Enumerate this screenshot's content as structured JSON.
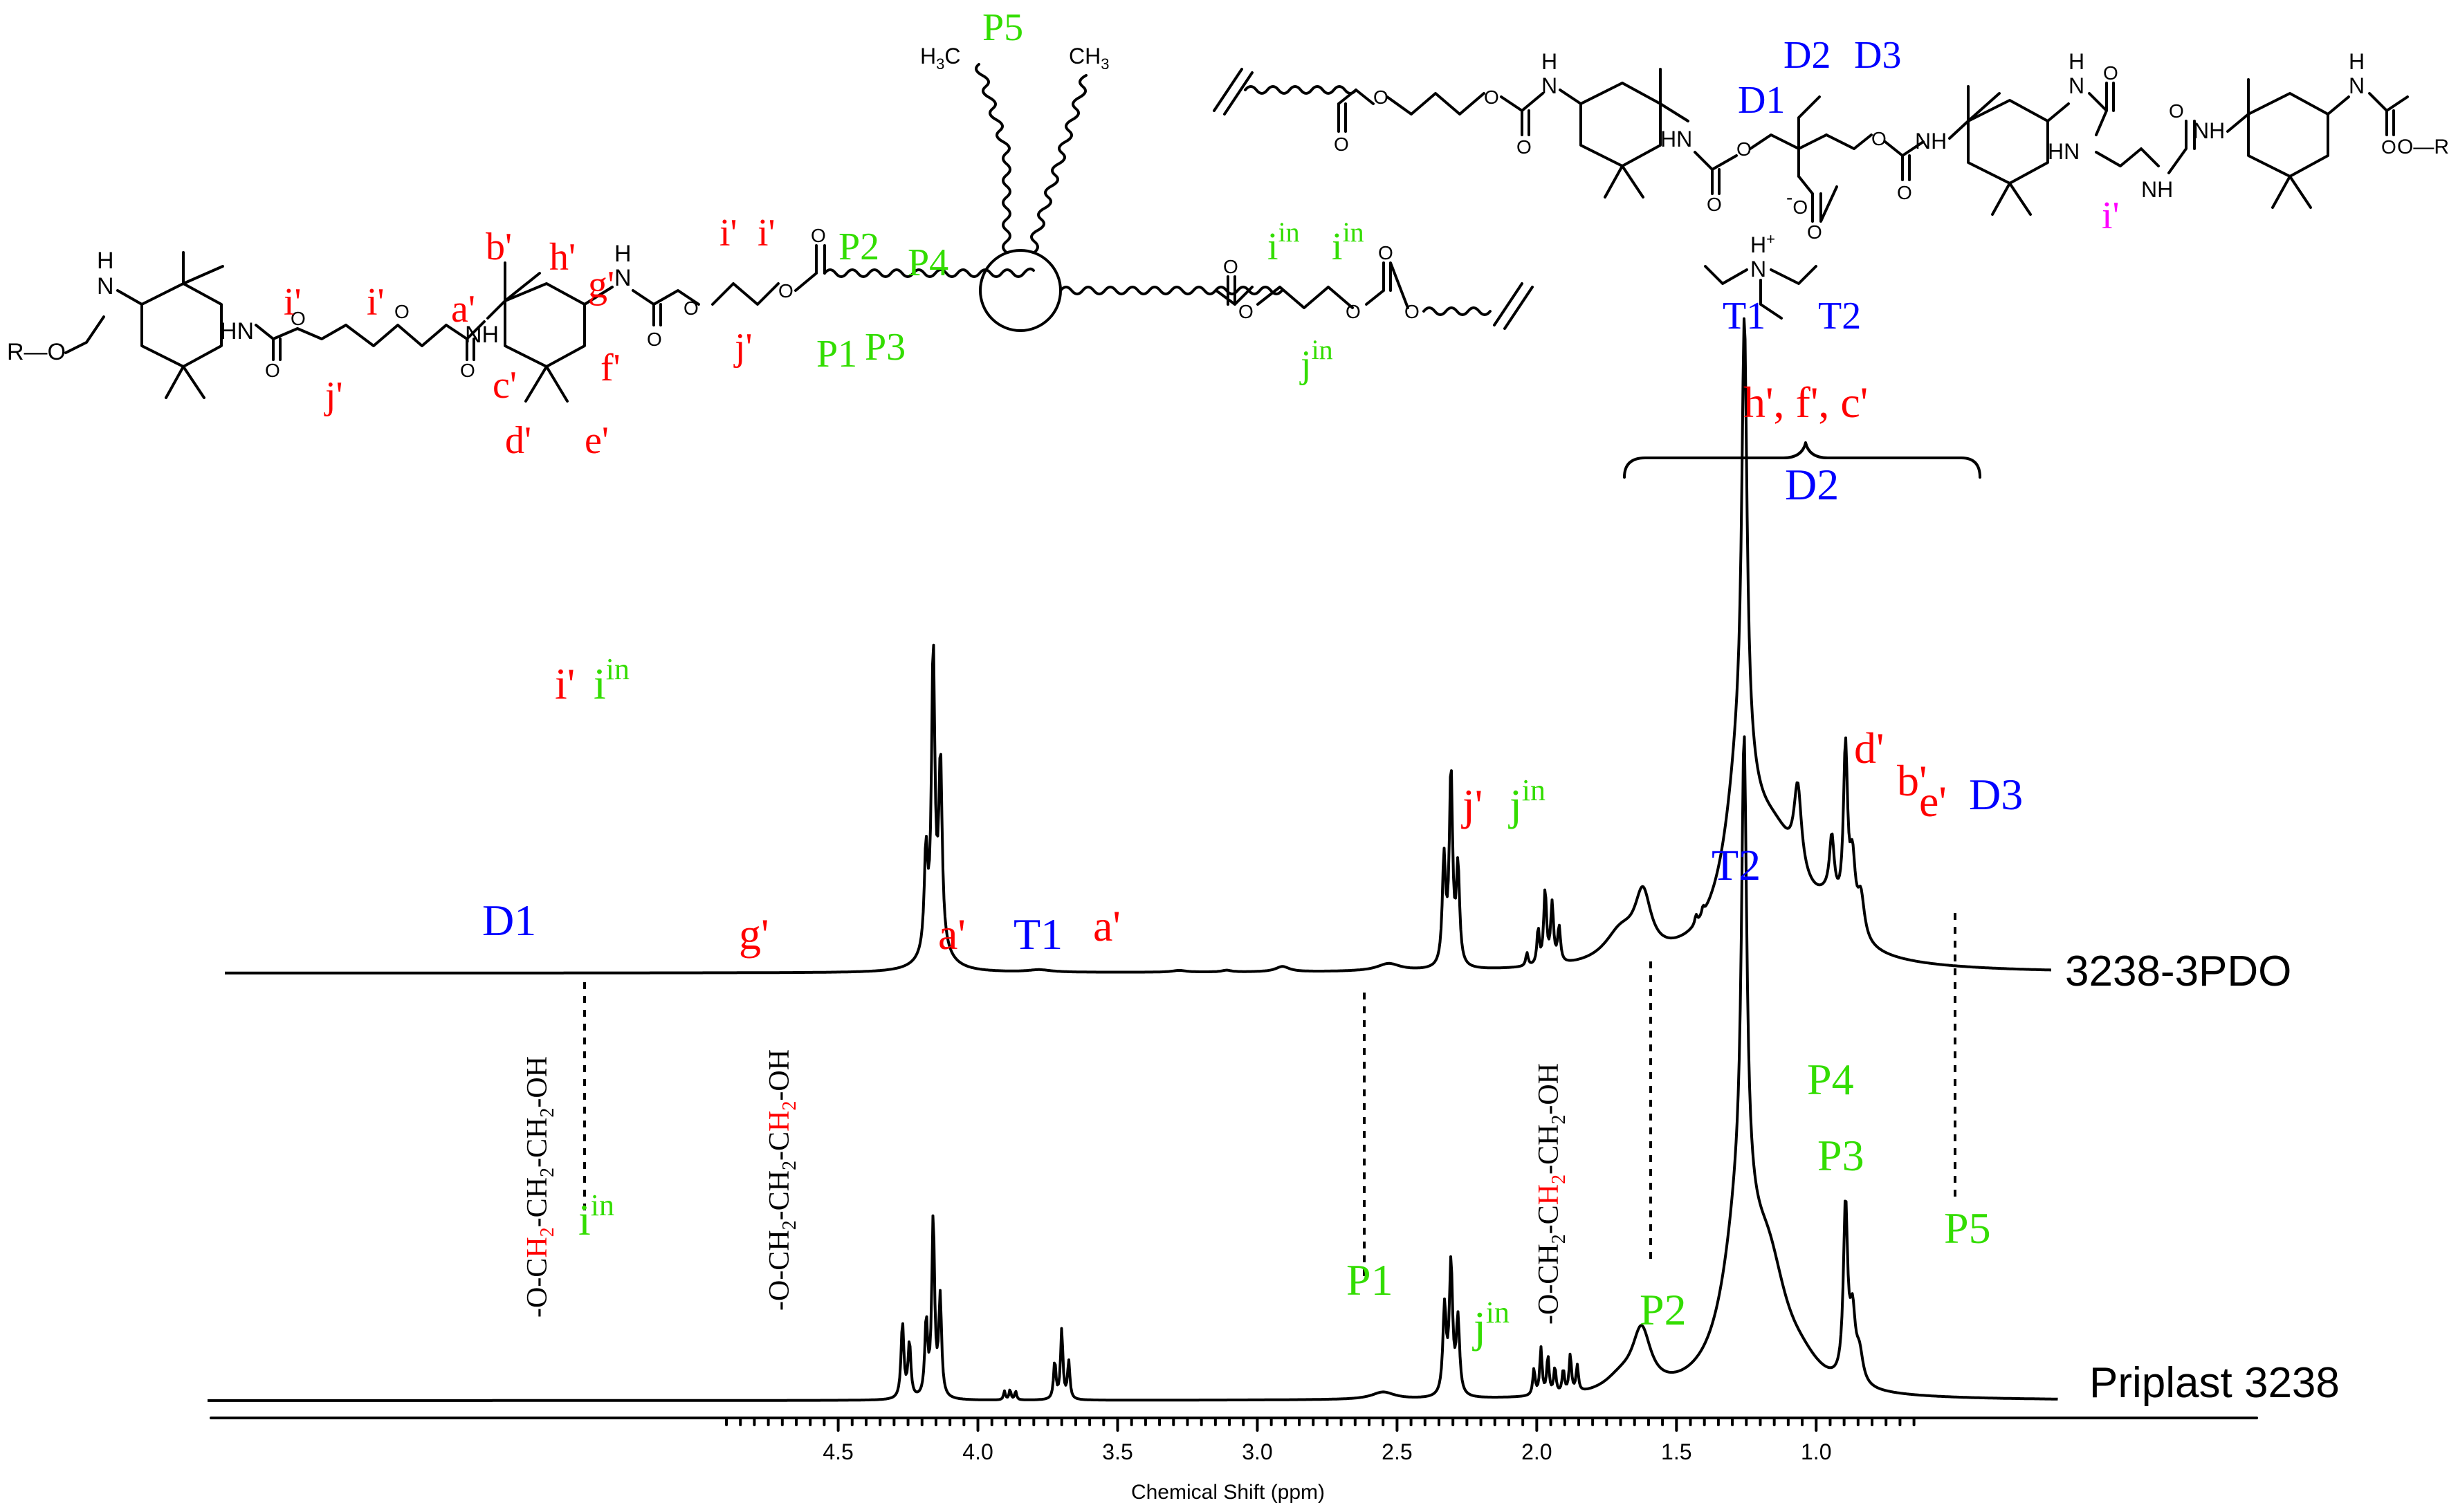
{
  "colors": {
    "red": "#ff0000",
    "green": "#33dd00",
    "blue": "#0000ff",
    "magenta": "#ff00ff",
    "black": "#000000"
  },
  "chart_data": {
    "type": "line",
    "xlabel": "Chemical Shift (ppm)",
    "xlim": [
      4.9,
      0.65
    ],
    "x_reversed": true,
    "x_ticks": [
      4.5,
      4.0,
      3.5,
      3.0,
      2.5,
      2.0,
      1.5,
      1.0
    ],
    "x_tick_labels": [
      "4.5",
      "4.0",
      "3.5",
      "3.0",
      "2.5",
      "2.0",
      "1.5",
      "1.0"
    ],
    "series": [
      {
        "name": "3238-3PDO",
        "x_start": 4.9,
        "x_end": 0.65,
        "peaks": [
          {
            "x": 4.186,
            "h": 0.33,
            "w": 0.007
          },
          {
            "x": 4.16,
            "h": 1.0,
            "w": 0.007
          },
          {
            "x": 4.134,
            "h": 0.62,
            "w": 0.007
          },
          {
            "x": 4.15,
            "h": 0.09,
            "w": 0.05
          },
          {
            "x": 3.78,
            "h": 0.008,
            "w": 0.05
          },
          {
            "x": 3.28,
            "h": 0.006,
            "w": 0.03
          },
          {
            "x": 3.11,
            "h": 0.006,
            "w": 0.02
          },
          {
            "x": 2.91,
            "h": 0.018,
            "w": 0.03
          },
          {
            "x": 2.53,
            "h": 0.025,
            "w": 0.05
          },
          {
            "x": 2.332,
            "h": 0.36,
            "w": 0.007
          },
          {
            "x": 2.307,
            "h": 0.66,
            "w": 0.007
          },
          {
            "x": 2.282,
            "h": 0.33,
            "w": 0.007
          },
          {
            "x": 2.035,
            "h": 0.045,
            "w": 0.005
          },
          {
            "x": 1.995,
            "h": 0.12,
            "w": 0.005
          },
          {
            "x": 1.97,
            "h": 0.25,
            "w": 0.006
          },
          {
            "x": 1.945,
            "h": 0.2,
            "w": 0.006
          },
          {
            "x": 1.92,
            "h": 0.12,
            "w": 0.006
          },
          {
            "x": 1.62,
            "h": 0.2,
            "w": 0.035
          },
          {
            "x": 1.7,
            "h": 0.1,
            "w": 0.07
          },
          {
            "x": 1.43,
            "h": 0.03,
            "w": 0.005
          },
          {
            "x": 1.405,
            "h": 0.025,
            "w": 0.005
          },
          {
            "x": 1.257,
            "h": 1.45,
            "w": 0.011
          },
          {
            "x": 1.27,
            "h": 0.55,
            "w": 0.06
          },
          {
            "x": 1.15,
            "h": 0.4,
            "w": 0.14
          },
          {
            "x": 1.066,
            "h": 0.28,
            "w": 0.016
          },
          {
            "x": 0.944,
            "h": 0.2,
            "w": 0.01
          },
          {
            "x": 0.895,
            "h": 0.58,
            "w": 0.009
          },
          {
            "x": 0.87,
            "h": 0.22,
            "w": 0.012
          },
          {
            "x": 0.84,
            "h": 0.14,
            "w": 0.015
          },
          {
            "x": 0.95,
            "h": 0.1,
            "w": 0.06
          }
        ]
      },
      {
        "name": "Priplast 3238",
        "x_start": 4.9,
        "x_end": 0.65,
        "peaks": [
          {
            "x": 4.27,
            "h": 0.26,
            "w": 0.006
          },
          {
            "x": 4.245,
            "h": 0.19,
            "w": 0.006
          },
          {
            "x": 4.185,
            "h": 0.26,
            "w": 0.006
          },
          {
            "x": 4.16,
            "h": 0.62,
            "w": 0.006
          },
          {
            "x": 4.135,
            "h": 0.34,
            "w": 0.006
          },
          {
            "x": 3.905,
            "h": 0.03,
            "w": 0.004
          },
          {
            "x": 3.885,
            "h": 0.035,
            "w": 0.004
          },
          {
            "x": 3.865,
            "h": 0.03,
            "w": 0.004
          },
          {
            "x": 3.725,
            "h": 0.13,
            "w": 0.005
          },
          {
            "x": 3.7,
            "h": 0.24,
            "w": 0.005
          },
          {
            "x": 3.675,
            "h": 0.13,
            "w": 0.005
          },
          {
            "x": 2.55,
            "h": 0.025,
            "w": 0.05
          },
          {
            "x": 2.33,
            "h": 0.3,
            "w": 0.007
          },
          {
            "x": 2.307,
            "h": 0.45,
            "w": 0.007
          },
          {
            "x": 2.282,
            "h": 0.26,
            "w": 0.007
          },
          {
            "x": 2.01,
            "h": 0.09,
            "w": 0.005
          },
          {
            "x": 1.985,
            "h": 0.16,
            "w": 0.005
          },
          {
            "x": 1.96,
            "h": 0.13,
            "w": 0.005
          },
          {
            "x": 1.935,
            "h": 0.09,
            "w": 0.005
          },
          {
            "x": 1.905,
            "h": 0.08,
            "w": 0.005
          },
          {
            "x": 1.88,
            "h": 0.13,
            "w": 0.005
          },
          {
            "x": 1.855,
            "h": 0.09,
            "w": 0.005
          },
          {
            "x": 1.625,
            "h": 0.2,
            "w": 0.04
          },
          {
            "x": 1.7,
            "h": 0.05,
            "w": 0.07
          },
          {
            "x": 1.258,
            "h": 1.55,
            "w": 0.011
          },
          {
            "x": 1.27,
            "h": 0.6,
            "w": 0.07
          },
          {
            "x": 1.17,
            "h": 0.35,
            "w": 0.08
          },
          {
            "x": 1.05,
            "h": 0.05,
            "w": 0.08
          },
          {
            "x": 0.895,
            "h": 0.6,
            "w": 0.009
          },
          {
            "x": 0.87,
            "h": 0.22,
            "w": 0.012
          },
          {
            "x": 0.845,
            "h": 0.1,
            "w": 0.015
          }
        ]
      }
    ],
    "trace_labels": {
      "top": "3238-3PDO",
      "bottom": "Priplast 3238"
    },
    "peak_annotations_top": [
      {
        "t": "i'",
        "color": "red"
      },
      {
        "t": "i",
        "sup": "in",
        "color": "green"
      },
      {
        "t": "D1",
        "color": "blue"
      },
      {
        "t": "g'",
        "color": "red"
      },
      {
        "t": "a'",
        "color": "red"
      },
      {
        "t": "T1",
        "color": "blue"
      },
      {
        "t": "a'",
        "color": "red"
      },
      {
        "t": "j'",
        "color": "red"
      },
      {
        "t": "j",
        "sup": "in",
        "color": "green"
      },
      {
        "t": "T2",
        "color": "blue"
      },
      {
        "t": "D2",
        "color": "blue"
      },
      {
        "t": "h', f', c'",
        "color": "red"
      },
      {
        "t": "d'",
        "color": "red"
      },
      {
        "t": "b'",
        "color": "red"
      },
      {
        "t": "e'",
        "color": "red"
      },
      {
        "t": "D3",
        "color": "blue"
      }
    ],
    "peak_annotations_bottom": [
      {
        "t": "i",
        "sup": "in",
        "color": "green"
      },
      {
        "t": "P1",
        "color": "green"
      },
      {
        "t": "j",
        "sup": "in",
        "color": "green"
      },
      {
        "t": "P2",
        "color": "green"
      },
      {
        "t": "P4",
        "color": "green"
      },
      {
        "t": "P3",
        "color": "green"
      },
      {
        "t": "P5",
        "color": "green"
      }
    ],
    "group_labels": [
      {
        "parts": [
          "-O-C",
          "H",
          "2",
          "-CH",
          "2",
          "-CH",
          "2",
          "-OH"
        ],
        "colored": [
          1,
          2
        ]
      },
      {
        "parts": [
          "-O-CH",
          "2",
          "-CH",
          "2",
          "-C",
          "H",
          "2",
          "-OH"
        ],
        "colored": [
          4,
          5,
          6
        ]
      },
      {
        "parts": [
          "-O-CH",
          "2",
          "-C",
          "H",
          "2",
          "-CH",
          "2",
          "-OH"
        ],
        "colored": [
          2,
          3,
          4
        ]
      }
    ]
  },
  "structure_labels_left": {
    "r_o": "R—O",
    "nh_top": "H",
    "n_top": "N",
    "hn_1": "HN",
    "nh_2": "NH",
    "n_3": "N",
    "h_3": "H",
    "i1": "i'",
    "i2": "i'",
    "j1": "j'",
    "a": "a'",
    "b": "b'",
    "h": "h'",
    "g": "g'",
    "c": "c'",
    "f": "f'",
    "d": "d'",
    "e": "e'",
    "i3": "i'",
    "i4": "i'",
    "j2": "j'",
    "P1": "P1",
    "P2": "P2",
    "P3": "P3",
    "P4": "P4",
    "P5": "P5",
    "h3c": "H",
    "h3c_sub": "3",
    "h3c_c": "C",
    "ch3": "CH",
    "ch3_sub": "3",
    "iin1": "i",
    "iin2": "i",
    "jin": "j",
    "sup_in": "in"
  },
  "structure_labels_right": {
    "d1": "D1",
    "d2": "D2",
    "d3": "D3",
    "t1": "T1",
    "t2": "T2",
    "ip": "i'",
    "hn1": "HN",
    "nh2": "NH",
    "hn3": "HN",
    "nh4": "NH",
    "nh5": "NH",
    "n6": "N",
    "h6": "H",
    "n7": "N",
    "h7": "H",
    "o_r": "O—R",
    "o_minus": "O",
    "minus": "-",
    "nh_plus": "H",
    "n_plus": "N",
    "plus": "+"
  }
}
